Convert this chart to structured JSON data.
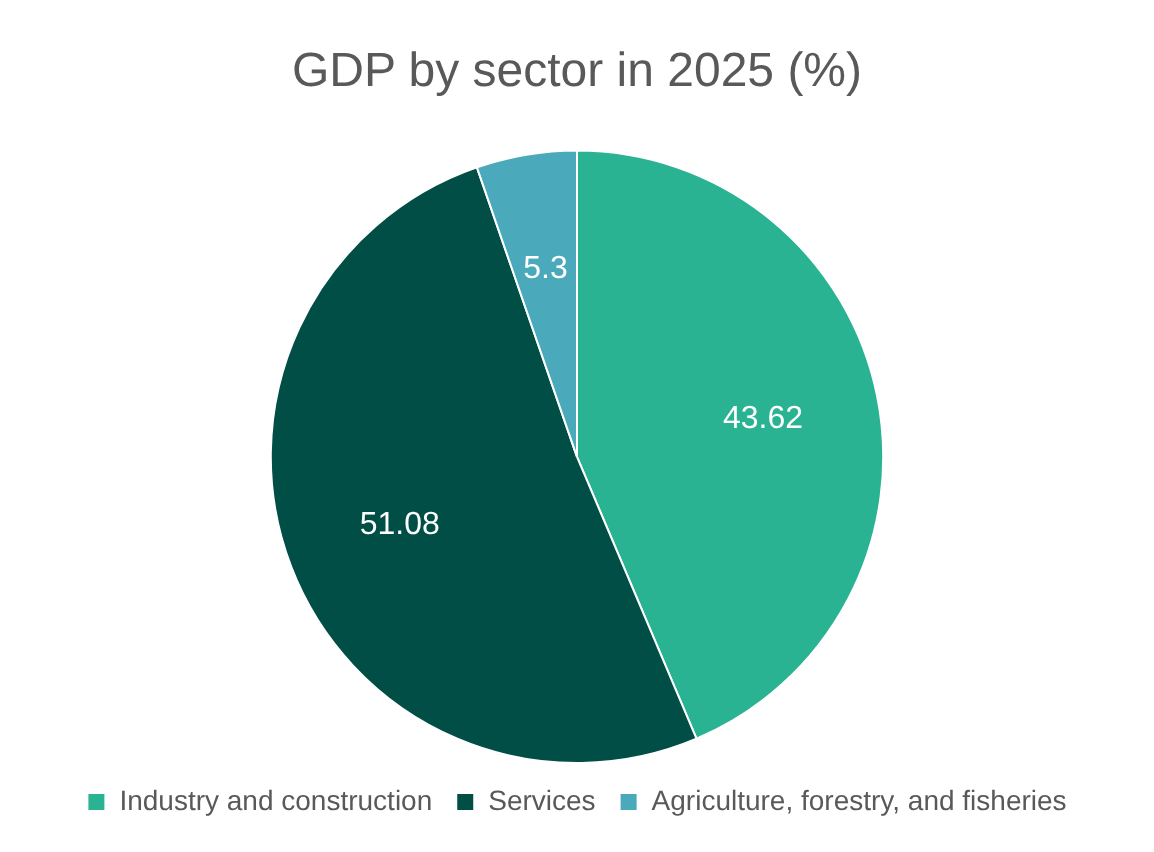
{
  "chart_data": {
    "type": "pie",
    "title": "GDP by sector in 2025 (%)",
    "categories": [
      "Industry and construction",
      "Services",
      "Agriculture, forestry, and fisheries"
    ],
    "values": [
      43.62,
      51.08,
      5.3
    ],
    "colors": [
      "#2ab393",
      "#004e46",
      "#4aa9ba"
    ],
    "data_labels": true,
    "legend": "bottom"
  }
}
